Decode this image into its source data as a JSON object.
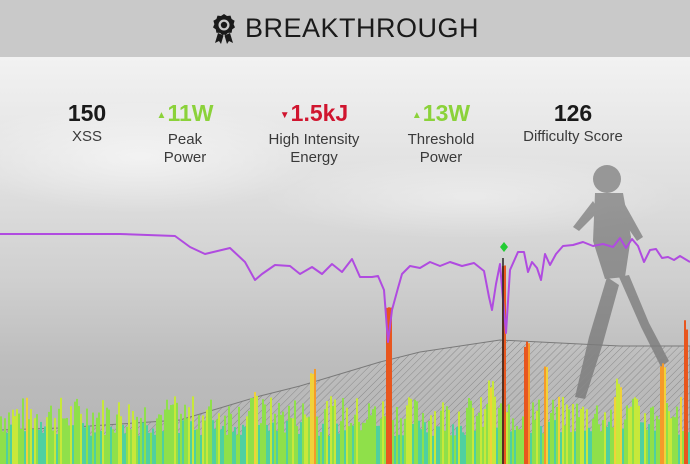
{
  "header": {
    "title": "BREAKTHROUGH",
    "icon": "award-icon"
  },
  "metrics": [
    {
      "value": "150",
      "label_lines": [
        "XSS"
      ],
      "color": "#1a1a1a",
      "arrow": null
    },
    {
      "value": "11W",
      "label_lines": [
        "Peak",
        "Power"
      ],
      "color": "#8bd23a",
      "arrow": "up"
    },
    {
      "value": "1.5kJ",
      "label_lines": [
        "High Intensity",
        "Energy"
      ],
      "color": "#d0152f",
      "arrow": "down"
    },
    {
      "value": "13W",
      "label_lines": [
        "Threshold",
        "Power"
      ],
      "color": "#8bd23a",
      "arrow": "up"
    },
    {
      "value": "126",
      "label_lines": [
        "Difficulty Score"
      ],
      "color": "#1a1a1a",
      "arrow": null
    }
  ],
  "colors": {
    "fitness_line": "#b04be0",
    "breakthrough_marker": "#22cc33",
    "background": "#e4e4e4",
    "header": "#c9c9c9"
  }
}
